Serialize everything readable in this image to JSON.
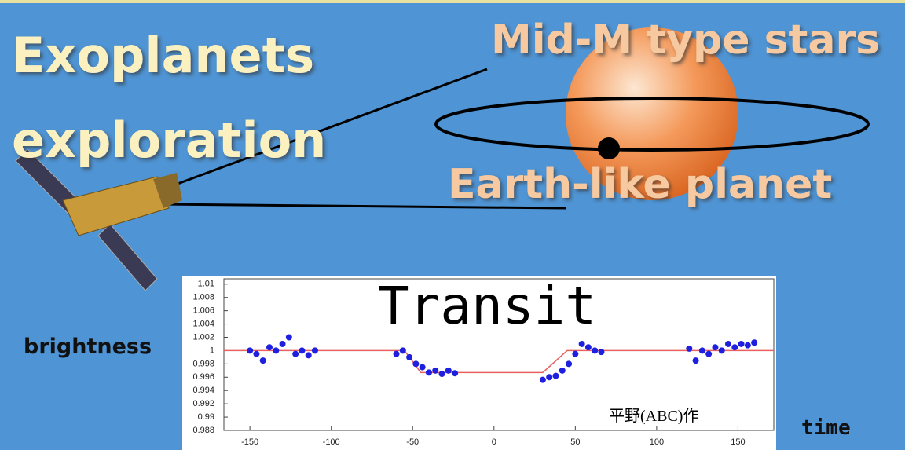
{
  "title_lines": [
    "Exoplanets",
    "exploration"
  ],
  "star_label": "Mid-M type stars",
  "planet_label": "Earth-like planet",
  "chart_data": {
    "type": "scatter",
    "title": "Transit",
    "y_label": "brightness",
    "x_label": "time",
    "credit": "平野(ABC)作",
    "x": [
      -150,
      -146,
      -142,
      -138,
      -134,
      -130,
      -126,
      -122,
      -118,
      -114,
      -110,
      -60,
      -56,
      -52,
      -48,
      -44,
      -40,
      -36,
      -32,
      -28,
      -24,
      30,
      34,
      38,
      42,
      46,
      50,
      54,
      58,
      62,
      66,
      120,
      124,
      128,
      132,
      136,
      140,
      144,
      148,
      152,
      156,
      160
    ],
    "values": [
      1.0,
      0.9995,
      0.9985,
      1.0005,
      1.0,
      1.001,
      1.002,
      0.9995,
      1.0,
      0.9993,
      1.0,
      0.9995,
      1.0,
      0.999,
      0.998,
      0.9975,
      0.9967,
      0.997,
      0.9965,
      0.997,
      0.9966,
      0.9956,
      0.996,
      0.9962,
      0.997,
      0.998,
      0.9995,
      1.001,
      1.0005,
      1.0,
      0.9998,
      1.0003,
      0.9985,
      1.0,
      0.9995,
      1.0005,
      1.0,
      1.001,
      1.0005,
      1.001,
      1.0008,
      1.0012
    ],
    "color": "#1f1fe0",
    "model": {
      "x": [
        -166,
        -55,
        -45,
        30,
        45,
        172
      ],
      "values": [
        1,
        1,
        0.9967,
        0.9967,
        1,
        1
      ],
      "color": "#e86060"
    },
    "xlim": [
      -166,
      172
    ],
    "ylim": [
      0.988,
      1.0108
    ],
    "xticks": [
      -150,
      -100,
      -50,
      0,
      50,
      100,
      150
    ],
    "yticks": [
      0.988,
      0.99,
      0.992,
      0.994,
      0.996,
      0.998,
      1,
      1.002,
      1.004,
      1.006,
      1.008,
      1.01
    ]
  }
}
